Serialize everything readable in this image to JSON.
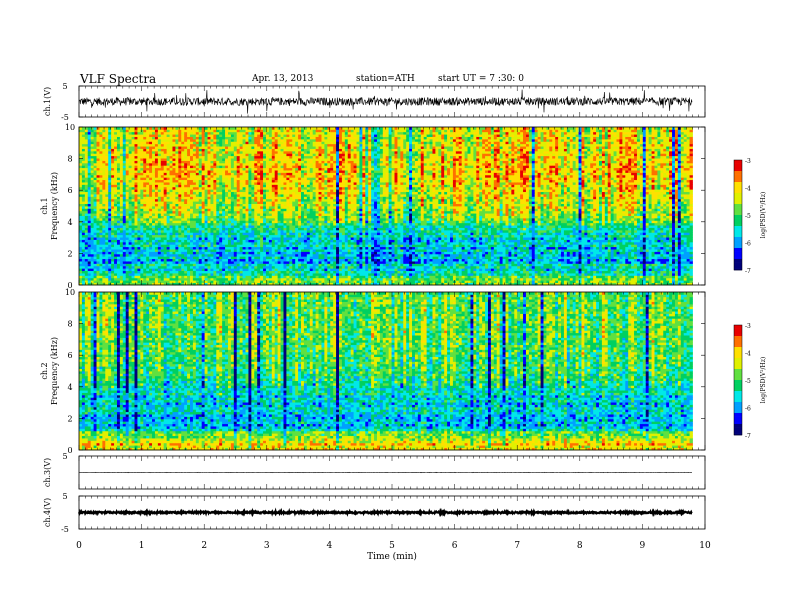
{
  "header": {
    "title": "VLF  Spectra",
    "date": "Apr. 13, 2013",
    "station": "station=ATH",
    "start": "start  UT  =   7 :30: 0"
  },
  "chart_data": [
    {
      "type": "line",
      "panel": "ch1-waveform",
      "ylabel": "ch.1(V)",
      "ylim": [
        -5,
        5
      ],
      "yticks": [
        "5",
        "-5"
      ],
      "xlim": [
        0,
        10
      ],
      "series": [
        {
          "values": "dense VLF waveform, mostly within -2..2 V with spikes toward ±4 V"
        }
      ]
    },
    {
      "type": "heatmap",
      "panel": "ch1-spectrogram",
      "ylabel": "ch.1\nFrequency  (kHz)",
      "ylabel_lines": [
        "ch.1",
        "Frequency  (kHz)"
      ],
      "ylim": [
        0,
        10
      ],
      "yticks": [
        "0",
        "2",
        "4",
        "6",
        "8",
        "10"
      ],
      "xlim": [
        0,
        10
      ],
      "data_extent_min": 9.8,
      "colorbar": {
        "label": "log(PSD(V²/Hz)",
        "range": [
          -7,
          -3
        ],
        "ticks": [
          "-3",
          "-4",
          "-5",
          "-6",
          "-7"
        ]
      },
      "profile": [
        {
          "f_khz": 0.5,
          "log_psd": -5.0
        },
        {
          "f_khz": 1.5,
          "log_psd": -5.8
        },
        {
          "f_khz": 3.0,
          "log_psd": -5.6
        },
        {
          "f_khz": 4.5,
          "log_psd": -4.6
        },
        {
          "f_khz": 7.0,
          "log_psd": -4.0
        },
        {
          "f_khz": 9.5,
          "log_psd": -4.3
        }
      ]
    },
    {
      "type": "heatmap",
      "panel": "ch2-spectrogram",
      "ylabel": "ch.2\nFrequency  (kHz)",
      "ylabel_lines": [
        "ch.2",
        "Frequency  (kHz)"
      ],
      "ylim": [
        0,
        10
      ],
      "yticks": [
        "0",
        "2",
        "4",
        "6",
        "8",
        "10"
      ],
      "xlim": [
        0,
        10
      ],
      "data_extent_min": 9.8,
      "colorbar": {
        "label": "log(PSD(V²/Hz)",
        "range": [
          -7,
          -3
        ],
        "ticks": [
          "-3",
          "-4",
          "-5",
          "-6",
          "-7"
        ]
      },
      "profile": [
        {
          "f_khz": 0.6,
          "log_psd": -4.0
        },
        {
          "f_khz": 1.5,
          "log_psd": -5.8
        },
        {
          "f_khz": 3.0,
          "log_psd": -5.6
        },
        {
          "f_khz": 5.0,
          "log_psd": -5.0
        },
        {
          "f_khz": 7.5,
          "log_psd": -4.8
        },
        {
          "f_khz": 9.5,
          "log_psd": -4.8
        }
      ]
    },
    {
      "type": "line",
      "panel": "ch3-waveform",
      "ylabel": "ch.3(V)",
      "ylim": [
        -5,
        5
      ],
      "yticks": [
        "5"
      ],
      "xlim": [
        0,
        10
      ],
      "series": [
        {
          "values": "flat trace near 0 V"
        }
      ]
    },
    {
      "type": "line",
      "panel": "ch4-waveform",
      "ylabel": "ch.4(V)",
      "ylim": [
        -5,
        5
      ],
      "yticks": [
        "5",
        "-5"
      ],
      "xlim": [
        0,
        10
      ],
      "series": [
        {
          "values": "thick flat trace near 0 V"
        }
      ]
    }
  ],
  "xaxis": {
    "label": "Time  (min)",
    "ticks": [
      "0",
      "1",
      "2",
      "3",
      "4",
      "5",
      "6",
      "7",
      "8",
      "9",
      "10"
    ],
    "range": [
      0,
      10
    ]
  },
  "colors": {
    "colormap": [
      "#00007a",
      "#0000ff",
      "#00a0ff",
      "#00e8e8",
      "#00d060",
      "#60e040",
      "#e0f000",
      "#ffe000",
      "#ff7000",
      "#e80000",
      "#ffffff"
    ]
  }
}
